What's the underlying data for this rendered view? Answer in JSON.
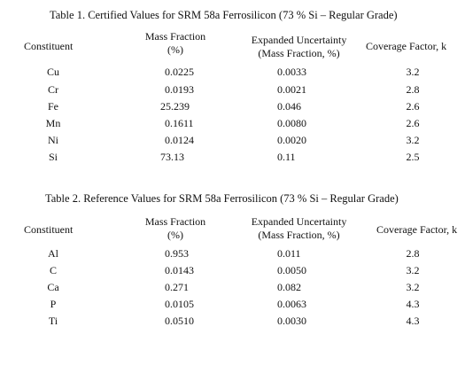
{
  "table1": {
    "caption": "Table 1.  Certified Values for SRM 58a Ferrosilicon (73 % Si – Regular Grade)",
    "headers": {
      "constituent": "Constituent",
      "mass_fraction_line1": "Mass Fraction",
      "mass_fraction_line2": "(%)",
      "uncertainty_line1": "Expanded Uncertainty",
      "uncertainty_line2": "(Mass Fraction, %)",
      "coverage": "Coverage Factor, k"
    },
    "rows": [
      {
        "constituent": "Cu",
        "mass_fraction": "0.0225",
        "uncertainty": "0.0033",
        "coverage": "3.2"
      },
      {
        "constituent": "Cr",
        "mass_fraction": "0.0193",
        "uncertainty": "0.0021",
        "coverage": "2.8"
      },
      {
        "constituent": "Fe",
        "mass_fraction": "25.239",
        "uncertainty": "0.046",
        "coverage": "2.6"
      },
      {
        "constituent": "Mn",
        "mass_fraction": "0.1611",
        "uncertainty": "0.0080",
        "coverage": "2.6"
      },
      {
        "constituent": "Ni",
        "mass_fraction": "0.0124",
        "uncertainty": "0.0020",
        "coverage": "3.2"
      },
      {
        "constituent": "Si",
        "mass_fraction": "73.13",
        "uncertainty": "0.11",
        "coverage": "2.5"
      }
    ]
  },
  "table2": {
    "caption": "Table 2.  Reference Values for SRM 58a Ferrosilicon (73 % Si – Regular Grade)",
    "headers": {
      "constituent": "Constituent",
      "mass_fraction_line1": "Mass Fraction",
      "mass_fraction_line2": "(%)",
      "uncertainty_line1": "Expanded Uncertainty",
      "uncertainty_line2": "(Mass Fraction, %)",
      "coverage": "Coverage Factor, k"
    },
    "rows": [
      {
        "constituent": "Al",
        "mass_fraction": "0.953",
        "uncertainty": "0.011",
        "coverage": "2.8"
      },
      {
        "constituent": "C",
        "mass_fraction": "0.0143",
        "uncertainty": "0.0050",
        "coverage": "3.2"
      },
      {
        "constituent": "Ca",
        "mass_fraction": "0.271",
        "uncertainty": "0.082",
        "coverage": "3.2"
      },
      {
        "constituent": "P",
        "mass_fraction": "0.0105",
        "uncertainty": "0.0063",
        "coverage": "4.3"
      },
      {
        "constituent": "Ti",
        "mass_fraction": "0.0510",
        "uncertainty": "0.0030",
        "coverage": "4.3"
      }
    ]
  }
}
